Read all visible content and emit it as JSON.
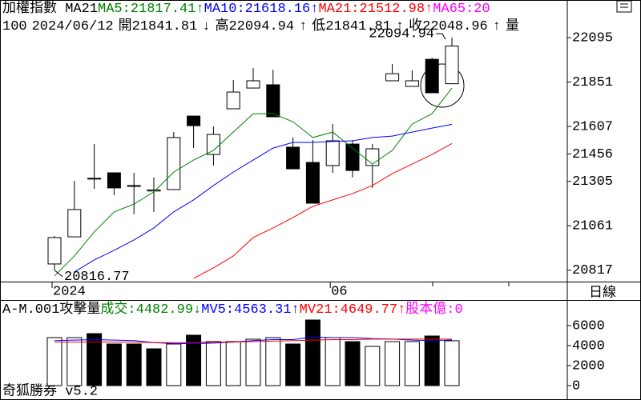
{
  "header": [
    {
      "text": "加權指數 MA21",
      "color": "#000000"
    },
    {
      "text": "MA5:21817.41",
      "color": "#008000"
    },
    {
      "text": "↑",
      "color": "#008000"
    },
    {
      "text": "MA10:21618.16",
      "color": "#0000ff"
    },
    {
      "text": "↑",
      "color": "#0000ff"
    },
    {
      "text": "MA21:21512.98",
      "color": "#ff0000"
    },
    {
      "text": "↑",
      "color": "#ff0000"
    },
    {
      "text": "MA65:20",
      "color": "#ff00ff"
    }
  ],
  "subheader": [
    "100",
    "2024/06/12",
    "開21841.81",
    "↓",
    "高22094.94",
    "↑",
    "低21841.81",
    "↑",
    "收22048.96",
    "↑",
    "量"
  ],
  "period": "日線",
  "footer": "奇狐勝券 v5.2",
  "chart_data": [
    {
      "type": "candlestick",
      "categories": [
        "2024",
        null,
        null,
        null,
        null,
        null,
        null,
        null,
        null,
        null,
        null,
        null,
        null,
        null,
        "06",
        null,
        null,
        null,
        null,
        null,
        null
      ],
      "open": [
        20851,
        21000,
        21318,
        21352,
        21280,
        21252,
        21260,
        21664,
        21453,
        21704,
        21818,
        21836,
        21493,
        21409,
        21392,
        21510,
        21392,
        21858,
        21827,
        21976,
        21841.81
      ],
      "high": [
        21005,
        21308,
        21510,
        21352,
        21352,
        21326,
        21576,
        21664,
        21607,
        21862,
        21928,
        21919,
        21546,
        21532,
        21620,
        21532,
        21510,
        21950,
        21915,
        21985,
        22094.94
      ],
      "low": [
        20816.77,
        21000,
        21264,
        21229,
        21124,
        21137,
        21260,
        21488,
        21392,
        21704,
        21818,
        21660,
        21374,
        21185,
        21352,
        21326,
        21269,
        21858,
        21827,
        21792,
        21841.81
      ],
      "close": [
        20996,
        21150,
        21322,
        21269,
        21282,
        21258,
        21546,
        21611,
        21563,
        21796,
        21858,
        21660,
        21374,
        21185,
        21528,
        21365,
        21484,
        21897,
        21858,
        21792,
        22048.96
      ],
      "up_color": "#ffffff",
      "down_color": "#000000",
      "series": [
        {
          "name": "MA5",
          "color": "#008000",
          "values": [
            20785,
            20895,
            21027,
            21137,
            21180,
            21247,
            21356,
            21422,
            21475,
            21576,
            21677,
            21677,
            21633,
            21546,
            21576,
            21488,
            21400,
            21475,
            21620,
            21677,
            21817.41
          ]
        },
        {
          "name": "MA10",
          "color": "#0000ff",
          "values": [
            null,
            20807,
            20873,
            20926,
            20983,
            21049,
            21137,
            21203,
            21282,
            21356,
            21422,
            21488,
            21519,
            21519,
            21524,
            21528,
            21546,
            21554,
            21576,
            21598,
            21618.16
          ]
        },
        {
          "name": "MA21",
          "color": "#ff0000",
          "values": [
            null,
            null,
            null,
            null,
            null,
            null,
            null,
            20772,
            20829,
            20895,
            20996,
            21049,
            21106,
            21168,
            21203,
            21238,
            21282,
            21348,
            21400,
            21453,
            21512.98
          ]
        }
      ],
      "annotations": [
        {
          "text": "22094.94",
          "index": 20,
          "value": 22094.94
        },
        {
          "text": "20816.77",
          "index": 0,
          "value": 20816.77
        }
      ],
      "ylim": [
        20754,
        22302
      ],
      "yticks": [
        22095,
        21851,
        21607,
        21456,
        21305,
        21061,
        20817
      ]
    },
    {
      "type": "bar",
      "title": [
        "A-M.001攻擊量",
        "成交:4482.99",
        "↓",
        "MV5:4563.31",
        "↑",
        "MV21:4649.77",
        "↑",
        "股本億:0"
      ],
      "title_colors": [
        "#000000",
        "#008000",
        "#008000",
        "#0000ff",
        "#0000ff",
        "#ff0000",
        "#ff0000",
        "#ff00ff"
      ],
      "values": [
        4800,
        4800,
        5200,
        4160,
        4160,
        3680,
        4160,
        5040,
        4400,
        4400,
        4640,
        4800,
        4160,
        6560,
        4800,
        4400,
        3920,
        4400,
        4400,
        4960,
        4482.99
      ],
      "colors": [
        "#ffffff",
        "#ffffff",
        "#000000",
        "#000000",
        "#000000",
        "#000000",
        "#ffffff",
        "#000000",
        "#ffffff",
        "#ffffff",
        "#ffffff",
        "#ffffff",
        "#000000",
        "#000000",
        "#ffffff",
        "#000000",
        "#ffffff",
        "#ffffff",
        "#ffffff",
        "#000000",
        "#ffffff"
      ],
      "series": [
        {
          "name": "MV5",
          "color": "#0000ff",
          "values": [
            4500,
            4550,
            4600,
            4550,
            4500,
            4300,
            4200,
            4200,
            4250,
            4350,
            4500,
            4600,
            4600,
            4850,
            4800,
            4800,
            4700,
            4650,
            4550,
            4500,
            4563.31
          ]
        },
        {
          "name": "MV21",
          "color": "#ff0000",
          "values": [
            4350,
            4350,
            4350,
            4350,
            4350,
            4300,
            4300,
            4300,
            4350,
            4350,
            4400,
            4450,
            4500,
            4550,
            4600,
            4600,
            4650,
            4650,
            4650,
            4650,
            4649.77
          ]
        }
      ],
      "ylim": [
        -1440,
        8560
      ],
      "yticks": [
        6000,
        4000,
        2000,
        0
      ]
    }
  ]
}
